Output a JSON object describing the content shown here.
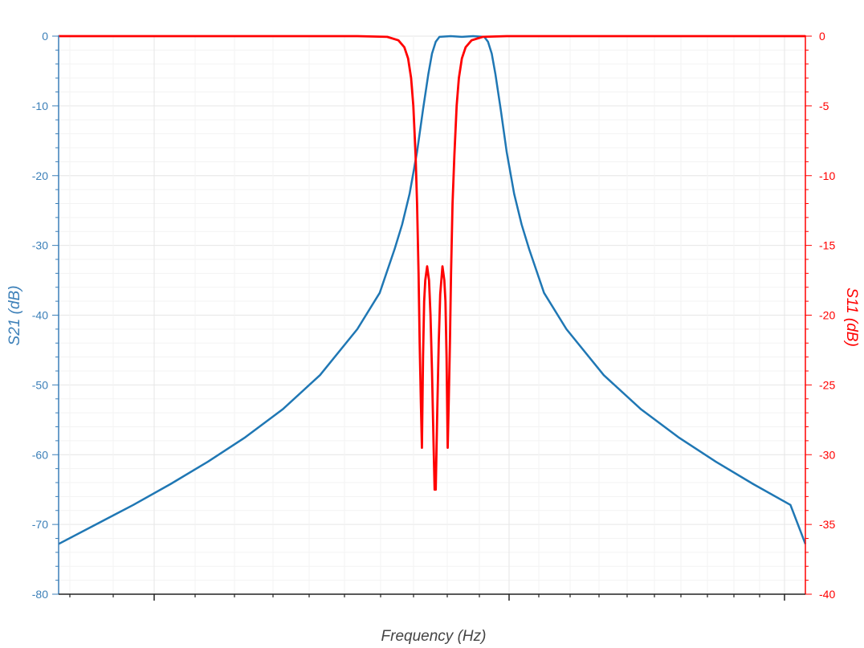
{
  "chart_data": {
    "type": "line",
    "xlabel": "Frequency (Hz)",
    "y_left_label": "S21 (dB)",
    "y_right_label": "S11 (dB)",
    "x_range": [
      0,
      1
    ],
    "y_left_range": [
      -80,
      0
    ],
    "y_right_range": [
      -40,
      0
    ],
    "y_left_ticks": [
      "0",
      "-10",
      "-20",
      "-30",
      "-40",
      "-50",
      "-60",
      "-70",
      "-80"
    ],
    "y_right_ticks": [
      "0",
      "-5",
      "-10",
      "-15",
      "-20",
      "-25",
      "-30",
      "-35",
      "-40"
    ],
    "x_tick_labels": [],
    "grid": true,
    "colors": {
      "s21": "#1f77b4",
      "s11": "#ff0000",
      "left_axis": "#3b7fb8",
      "right_axis": "#ff0000",
      "grid": "#e6e6e6",
      "minor_grid": "#f3f3f3"
    },
    "series": [
      {
        "axis": "left",
        "color": "#1f77b4",
        "points": [
          [
            0.0,
            -72.8
          ],
          [
            0.05,
            -70.0
          ],
          [
            0.1,
            -67.2
          ],
          [
            0.15,
            -64.2
          ],
          [
            0.2,
            -61.0
          ],
          [
            0.25,
            -57.5
          ],
          [
            0.3,
            -53.5
          ],
          [
            0.35,
            -48.6
          ],
          [
            0.4,
            -42.0
          ],
          [
            0.43,
            -36.8
          ],
          [
            0.45,
            -30.5
          ],
          [
            0.46,
            -27.0
          ],
          [
            0.47,
            -22.6
          ],
          [
            0.48,
            -16.6
          ],
          [
            0.488,
            -10.5
          ],
          [
            0.495,
            -5.5
          ],
          [
            0.5,
            -2.5
          ],
          [
            0.505,
            -0.8
          ],
          [
            0.51,
            -0.1
          ],
          [
            0.525,
            0.0
          ],
          [
            0.54,
            -0.1
          ],
          [
            0.555,
            0.0
          ],
          [
            0.57,
            -0.1
          ],
          [
            0.575,
            -0.8
          ],
          [
            0.58,
            -2.5
          ],
          [
            0.585,
            -5.5
          ],
          [
            0.592,
            -10.5
          ],
          [
            0.6,
            -16.6
          ],
          [
            0.61,
            -22.6
          ],
          [
            0.62,
            -27.0
          ],
          [
            0.63,
            -30.5
          ],
          [
            0.65,
            -36.8
          ],
          [
            0.68,
            -42.0
          ],
          [
            0.73,
            -48.6
          ],
          [
            0.78,
            -53.5
          ],
          [
            0.83,
            -57.5
          ],
          [
            0.88,
            -61.0
          ],
          [
            0.93,
            -64.2
          ],
          [
            0.98,
            -67.2
          ],
          [
            1.0,
            -72.8
          ]
        ]
      },
      {
        "axis": "right",
        "color": "#ff0000",
        "points": [
          [
            0.0,
            0.0
          ],
          [
            0.4,
            0.0
          ],
          [
            0.44,
            -0.05
          ],
          [
            0.455,
            -0.3
          ],
          [
            0.463,
            -0.8
          ],
          [
            0.468,
            -1.6
          ],
          [
            0.472,
            -3.0
          ],
          [
            0.475,
            -5.0
          ],
          [
            0.478,
            -8.5
          ],
          [
            0.48,
            -12.0
          ],
          [
            0.482,
            -17.0
          ],
          [
            0.4835,
            -22.0
          ],
          [
            0.485,
            -26.0
          ],
          [
            0.4865,
            -29.5
          ],
          [
            0.488,
            -23.0
          ],
          [
            0.4895,
            -19.0
          ],
          [
            0.491,
            -17.5
          ],
          [
            0.4935,
            -16.5
          ],
          [
            0.496,
            -17.5
          ],
          [
            0.498,
            -20.0
          ],
          [
            0.5,
            -24.0
          ],
          [
            0.502,
            -29.0
          ],
          [
            0.5035,
            -32.5
          ],
          [
            0.505,
            -32.5
          ],
          [
            0.507,
            -27.0
          ],
          [
            0.509,
            -22.0
          ],
          [
            0.511,
            -18.5
          ],
          [
            0.514,
            -16.5
          ],
          [
            0.5165,
            -17.5
          ],
          [
            0.518,
            -19.0
          ],
          [
            0.5195,
            -23.0
          ],
          [
            0.521,
            -29.5
          ],
          [
            0.5225,
            -26.0
          ],
          [
            0.524,
            -22.0
          ],
          [
            0.5255,
            -17.0
          ],
          [
            0.5275,
            -12.0
          ],
          [
            0.53,
            -8.5
          ],
          [
            0.533,
            -5.0
          ],
          [
            0.536,
            -3.0
          ],
          [
            0.54,
            -1.6
          ],
          [
            0.545,
            -0.8
          ],
          [
            0.553,
            -0.3
          ],
          [
            0.568,
            -0.05
          ],
          [
            0.6,
            0.0
          ],
          [
            1.0,
            0.0
          ]
        ]
      }
    ]
  }
}
